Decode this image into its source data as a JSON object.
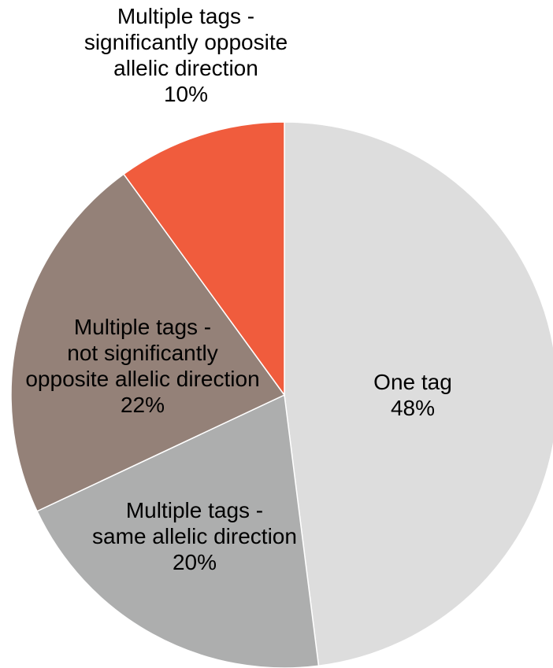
{
  "chart_data": {
    "type": "pie",
    "start": "12 o'clock",
    "direction": "clockwise",
    "slices": [
      {
        "label_lines": [
          "One tag",
          "48%"
        ],
        "value": 48,
        "color": "#dddddd"
      },
      {
        "label_lines": [
          "Multiple tags -",
          "same allelic direction",
          "20%"
        ],
        "value": 20,
        "color": "#adaeae"
      },
      {
        "label_lines": [
          "Multiple tags -",
          "not significantly",
          "opposite allelic direction",
          "22%"
        ],
        "value": 22,
        "color": "#948178"
      },
      {
        "label_lines": [
          "Multiple tags -",
          "significantly opposite",
          "allelic direction",
          "10%"
        ],
        "value": 10,
        "color": "#f05c3d"
      }
    ]
  }
}
